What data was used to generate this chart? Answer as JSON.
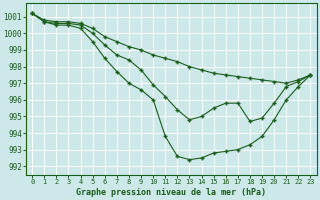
{
  "title": "Graphe pression niveau de la mer (hPa)",
  "bg_color": "#cce8e8",
  "grid_color": "#ffffff",
  "line_color": "#1a5c1a",
  "marker": "+",
  "xlim_min": -0.5,
  "xlim_max": 23.5,
  "ylim_min": 991.5,
  "ylim_max": 1001.8,
  "yticks": [
    992,
    993,
    994,
    995,
    996,
    997,
    998,
    999,
    1000,
    1001
  ],
  "xticks": [
    0,
    1,
    2,
    3,
    4,
    5,
    6,
    7,
    8,
    9,
    10,
    11,
    12,
    13,
    14,
    15,
    16,
    17,
    18,
    19,
    20,
    21,
    22,
    23
  ],
  "series": [
    [
      1001.2,
      1000.8,
      1000.7,
      1000.7,
      1000.6,
      1000.3,
      999.8,
      999.5,
      999.2,
      999.0,
      998.7,
      998.5,
      998.3,
      998.0,
      997.8,
      997.6,
      997.5,
      997.4,
      997.3,
      997.2,
      997.1,
      997.0,
      997.2,
      997.5
    ],
    [
      1001.2,
      1000.7,
      1000.6,
      1000.6,
      1000.5,
      1000.0,
      999.3,
      998.7,
      998.4,
      997.8,
      996.9,
      996.2,
      995.4,
      994.8,
      995.0,
      995.5,
      995.8,
      995.8,
      994.7,
      994.9,
      995.8,
      996.8,
      997.1,
      997.5
    ],
    [
      1001.2,
      1000.7,
      1000.5,
      1000.5,
      1000.3,
      999.5,
      998.5,
      997.7,
      997.0,
      996.6,
      996.0,
      993.8,
      992.6,
      992.4,
      992.5,
      992.8,
      992.9,
      993.0,
      993.3,
      993.8,
      994.8,
      996.0,
      996.8,
      997.5
    ]
  ]
}
